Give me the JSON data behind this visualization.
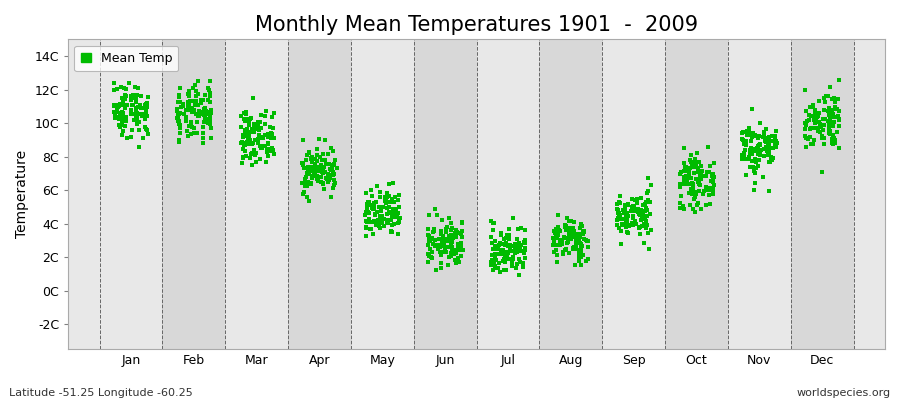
{
  "title": "Monthly Mean Temperatures 1901  -  2009",
  "ylabel": "Temperature",
  "xlabel_labels": [
    "Jan",
    "Feb",
    "Mar",
    "Apr",
    "May",
    "Jun",
    "Jul",
    "Aug",
    "Sep",
    "Oct",
    "Nov",
    "Dec"
  ],
  "ytick_labels": [
    "-2C",
    "0C",
    "2C",
    "4C",
    "6C",
    "8C",
    "10C",
    "12C",
    "14C"
  ],
  "ytick_values": [
    -2,
    0,
    2,
    4,
    6,
    8,
    10,
    12,
    14
  ],
  "ylim": [
    -3.5,
    15.0
  ],
  "xlim": [
    0,
    13
  ],
  "marker_color": "#00bb00",
  "marker_size": 2.5,
  "legend_label": "Mean Temp",
  "bg_color": "#e8e8e8",
  "bg_band_color": "#d8d8d8",
  "grid_color": "#666666",
  "title_fontsize": 15,
  "axis_fontsize": 10,
  "tick_fontsize": 9,
  "bottom_left_text": "Latitude -51.25 Longitude -60.25",
  "bottom_right_text": "worldspecies.org",
  "monthly_means": [
    10.8,
    10.5,
    9.2,
    7.2,
    4.5,
    2.8,
    2.4,
    3.0,
    4.5,
    6.5,
    8.5,
    10.2
  ],
  "monthly_stds": [
    0.85,
    0.85,
    0.75,
    0.7,
    0.75,
    0.7,
    0.75,
    0.65,
    0.7,
    0.75,
    0.85,
    0.9
  ],
  "n_years": 109,
  "jitter": 0.28
}
